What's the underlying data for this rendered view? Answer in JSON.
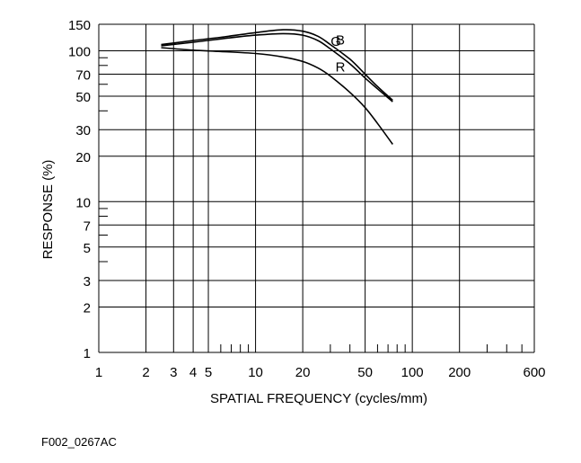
{
  "figure_id": "F002_0267AC",
  "chart_data": {
    "type": "line",
    "title": "",
    "xlabel": "SPATIAL FREQUENCY (cycles/mm)",
    "ylabel": "RESPONSE (%)",
    "x_scale": "log",
    "y_scale": "log",
    "xlim": [
      1,
      600
    ],
    "ylim": [
      1,
      150
    ],
    "x_ticks": [
      1,
      2,
      3,
      4,
      5,
      10,
      20,
      50,
      100,
      200,
      600
    ],
    "x_tick_labels": [
      "1",
      "2",
      "3",
      "4",
      "5",
      "10",
      "20",
      "50",
      "100",
      "200",
      "600"
    ],
    "y_ticks": [
      1,
      2,
      3,
      5,
      7,
      10,
      20,
      30,
      50,
      70,
      100,
      150
    ],
    "y_tick_labels": [
      "1",
      "2",
      "3",
      "5",
      "7",
      "10",
      "20",
      "30",
      "50",
      "70",
      "100",
      "150"
    ],
    "x_gridlines": [
      1,
      2,
      3,
      4,
      5,
      10,
      20,
      50,
      100,
      200,
      600
    ],
    "y_gridlines": [
      1,
      2,
      3,
      5,
      7,
      10,
      20,
      30,
      50,
      70,
      100,
      150
    ],
    "x_minor_ticks": [
      6,
      7,
      8,
      9,
      30,
      40,
      60,
      70,
      80,
      90,
      300,
      400,
      500
    ],
    "y_minor_ticks": [
      4,
      6,
      8,
      9,
      40,
      60,
      80,
      90
    ],
    "grid": true,
    "series": [
      {
        "name": "B",
        "x": [
          2.5,
          4,
          6,
          10,
          15,
          20,
          25,
          30,
          40,
          50,
          60,
          75
        ],
        "y": [
          110,
          117,
          123,
          132,
          138,
          135,
          125,
          110,
          88,
          70,
          58,
          47
        ]
      },
      {
        "name": "G",
        "x": [
          2.5,
          4,
          6,
          10,
          15,
          20,
          25,
          30,
          40,
          50,
          60,
          75
        ],
        "y": [
          108,
          114,
          120,
          127,
          130,
          127,
          117,
          103,
          82,
          66,
          56,
          46
        ]
      },
      {
        "name": "R",
        "x": [
          2.5,
          4,
          6,
          10,
          15,
          20,
          25,
          30,
          40,
          50,
          60,
          75
        ],
        "y": [
          105,
          101,
          99,
          96,
          91,
          85,
          77,
          68,
          53,
          42,
          33,
          24
        ]
      }
    ]
  }
}
